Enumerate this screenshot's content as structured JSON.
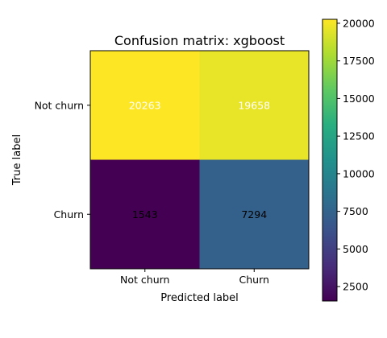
{
  "chart_data": {
    "type": "heatmap",
    "title": "Confusion matrix: xgboost",
    "xlabel": "Predicted label",
    "ylabel": "True label",
    "x_categories": [
      "Not churn",
      "Churn"
    ],
    "y_categories": [
      "Not churn",
      "Churn"
    ],
    "values": [
      [
        20263,
        19658
      ],
      [
        1543,
        7294
      ]
    ],
    "cell_labels": [
      [
        "20263",
        "19658"
      ],
      [
        "1543",
        "7294"
      ]
    ],
    "cell_label_colors": [
      [
        "#ffffff",
        "#ffffff"
      ],
      [
        "#000000",
        "#000000"
      ]
    ],
    "colormap": "viridis",
    "colorbar": {
      "range": [
        1543,
        20263
      ],
      "ticks": [
        2500,
        5000,
        7500,
        10000,
        12500,
        15000,
        17500,
        20000
      ],
      "tick_labels": [
        "2500",
        "5000",
        "7500",
        "10000",
        "12500",
        "15000",
        "17500",
        "20000"
      ]
    },
    "grid": false
  }
}
